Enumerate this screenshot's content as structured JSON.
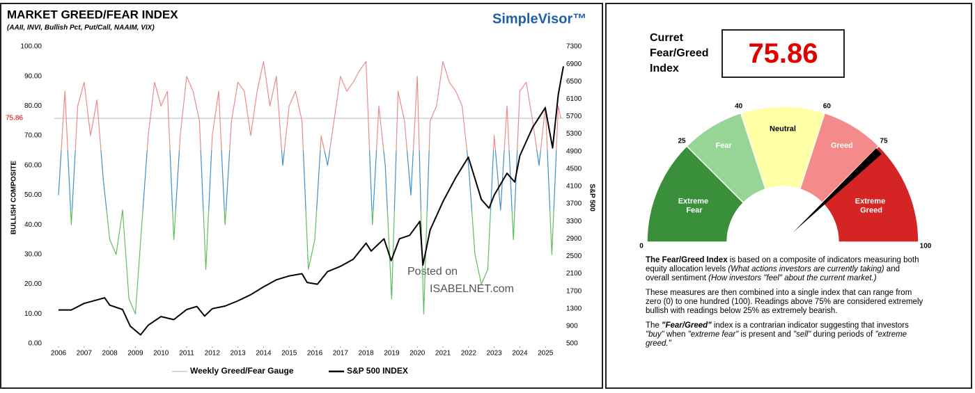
{
  "chart_data": [
    {
      "type": "line",
      "title": "MARKET GREED/FEAR INDEX",
      "subtitle": "(AAII, INVI, Bullish Pct, Put/Call, NAAIM, VIX)",
      "logo": "SimpleVisor™",
      "watermark": [
        "Posted on",
        "ISABELNET.com"
      ],
      "ylabel": "BULLISH COMPOSITE",
      "y2label": "S&P 500",
      "xlim": [
        2006,
        2025.7
      ],
      "xticks": [
        2006,
        2007,
        2008,
        2009,
        2010,
        2011,
        2012,
        2013,
        2014,
        2015,
        2016,
        2017,
        2018,
        2019,
        2020,
        2021,
        2022,
        2023,
        2024,
        2025
      ],
      "ylim": [
        0,
        100
      ],
      "yticks": [
        {
          "value": 0,
          "label": "0.00"
        },
        {
          "value": 10,
          "label": "10.00"
        },
        {
          "value": 20,
          "label": "20.00"
        },
        {
          "value": 30,
          "label": "30.00"
        },
        {
          "value": 40,
          "label": "40.00"
        },
        {
          "value": 50,
          "label": "50.00"
        },
        {
          "value": 60,
          "label": "60.00"
        },
        {
          "value": 70,
          "label": "70.00"
        },
        {
          "value": 80,
          "label": "80.00"
        },
        {
          "value": 90,
          "label": "90.00"
        },
        {
          "value": 100,
          "label": "100.00"
        }
      ],
      "y2lim": [
        500,
        7300
      ],
      "y2ticks": [
        500,
        900,
        1300,
        1700,
        2100,
        2500,
        2900,
        3300,
        3700,
        4100,
        4500,
        4900,
        5300,
        5700,
        6100,
        6500,
        6900,
        7300
      ],
      "reference_line": {
        "value": 75.86,
        "color": "#e00000"
      },
      "legend": "bottom",
      "series": [
        {
          "name": "Weekly Greed/Fear Gauge",
          "color": "#c8c8c8",
          "color_bands": [
            {
              "from": 0,
              "to": 45,
              "color": "#5cbf5c"
            },
            {
              "from": 45,
              "to": 65,
              "color": "#3f8fcc"
            },
            {
              "from": 65,
              "to": 100,
              "color": "#ec8a8a"
            }
          ],
          "x": [
            2006,
            2006.25,
            2006.5,
            2006.75,
            2007,
            2007.25,
            2007.5,
            2007.75,
            2008,
            2008.25,
            2008.5,
            2008.75,
            2009,
            2009.25,
            2009.5,
            2009.75,
            2010,
            2010.25,
            2010.5,
            2010.75,
            2011,
            2011.25,
            2011.5,
            2011.75,
            2012,
            2012.25,
            2012.5,
            2012.75,
            2013,
            2013.25,
            2013.5,
            2013.75,
            2014,
            2014.25,
            2014.5,
            2014.75,
            2015,
            2015.25,
            2015.5,
            2015.75,
            2016,
            2016.25,
            2016.5,
            2016.75,
            2017,
            2017.25,
            2017.5,
            2017.75,
            2018,
            2018.25,
            2018.5,
            2018.75,
            2019,
            2019.25,
            2019.5,
            2019.75,
            2020,
            2020.25,
            2020.5,
            2020.75,
            2021,
            2021.25,
            2021.5,
            2021.75,
            2022,
            2022.25,
            2022.5,
            2022.75,
            2023,
            2023.25,
            2023.5,
            2023.75,
            2024,
            2024.25,
            2024.5,
            2024.75,
            2025,
            2025.25,
            2025.5,
            2025.6
          ],
          "values": [
            50,
            85,
            40,
            80,
            88,
            70,
            82,
            55,
            35,
            30,
            45,
            15,
            10,
            40,
            70,
            88,
            80,
            85,
            35,
            70,
            90,
            85,
            75,
            25,
            70,
            85,
            40,
            75,
            88,
            85,
            70,
            85,
            95,
            80,
            90,
            60,
            80,
            85,
            75,
            25,
            35,
            70,
            60,
            75,
            90,
            85,
            88,
            92,
            95,
            40,
            80,
            60,
            15,
            85,
            75,
            50,
            90,
            10,
            75,
            80,
            95,
            88,
            85,
            80,
            60,
            30,
            20,
            25,
            70,
            45,
            80,
            35,
            85,
            88,
            75,
            60,
            80,
            30,
            80,
            75.86
          ]
        },
        {
          "name": "S&P 500 INDEX",
          "color": "#000000",
          "axis": "y2",
          "x": [
            2006,
            2006.5,
            2007,
            2007.5,
            2007.8,
            2008,
            2008.5,
            2008.8,
            2009.2,
            2009.5,
            2010,
            2010.5,
            2011,
            2011.4,
            2011.7,
            2012,
            2012.5,
            2013,
            2013.5,
            2014,
            2014.5,
            2015,
            2015.5,
            2015.7,
            2016.1,
            2016.5,
            2017,
            2017.5,
            2018,
            2018.2,
            2018.7,
            2018.98,
            2019.3,
            2019.7,
            2020.1,
            2020.22,
            2020.5,
            2021,
            2021.5,
            2021.99,
            2022.5,
            2022.8,
            2023,
            2023.5,
            2023.8,
            2024,
            2024.5,
            2024.99,
            2025.28,
            2025.5,
            2025.7
          ],
          "values": [
            1270,
            1270,
            1420,
            1500,
            1550,
            1380,
            1280,
            900,
            700,
            920,
            1120,
            1050,
            1280,
            1350,
            1130,
            1300,
            1360,
            1480,
            1620,
            1800,
            1960,
            2050,
            2100,
            1900,
            1860,
            2150,
            2270,
            2430,
            2800,
            2620,
            2900,
            2400,
            2900,
            2980,
            3300,
            2300,
            3100,
            3750,
            4300,
            4770,
            3800,
            3600,
            3900,
            4400,
            4200,
            4800,
            5450,
            5900,
            4980,
            6200,
            6850
          ]
        }
      ]
    },
    {
      "type": "gauge",
      "value_label": "Curret Fear/Greed Index",
      "value": 75.86,
      "value_color": "#e00000",
      "needle_color": "#000000",
      "range": [
        0,
        100
      ],
      "ticks": [
        0,
        25,
        40,
        60,
        75,
        100
      ],
      "segments": [
        {
          "name": "Extreme Fear",
          "from": 0,
          "to": 25,
          "color": "#3a8f3a",
          "label_color": "#ffffff"
        },
        {
          "name": "Fear",
          "from": 25,
          "to": 40,
          "color": "#97d597",
          "label_color": "#ffffff"
        },
        {
          "name": "Neutral",
          "from": 40,
          "to": 60,
          "color": "#ffffa6",
          "label_color": "#000000"
        },
        {
          "name": "Greed",
          "from": 60,
          "to": 75,
          "color": "#f48a8a",
          "label_color": "#ffffff"
        },
        {
          "name": "Extreme Greed",
          "from": 75,
          "to": 100,
          "color": "#d42424",
          "label_color": "#ffffff"
        }
      ],
      "description": [
        [
          {
            "text": "The Fear/Greed Index",
            "style": "bold"
          },
          {
            "text": " is based on a composite of indicators measuring both equity allocation levels ",
            "style": "normal"
          },
          {
            "text": "(What actions investors are currently taking)",
            "style": "italic"
          },
          {
            "text": " and overall sentiment ",
            "style": "normal"
          },
          {
            "text": "(How investors \"feel\" about the current market.)",
            "style": "italic"
          }
        ],
        [
          {
            "text": "These measures are then combined into a single index that can range from zero (0) to one hundred (100). Readings above 75% are considered extremely bullish with readings below 25% as extremely bearish.",
            "style": "normal"
          }
        ],
        [
          {
            "text": "The ",
            "style": "normal"
          },
          {
            "text": "\"Fear/Greed\"",
            "style": "bold-italic"
          },
          {
            "text": " index is a contrarian indicator suggesting that investors ",
            "style": "normal"
          },
          {
            "text": "\"buy\"",
            "style": "italic"
          },
          {
            "text": " when ",
            "style": "normal"
          },
          {
            "text": "\"extreme fear\"",
            "style": "italic"
          },
          {
            "text": " is present and ",
            "style": "normal"
          },
          {
            "text": "\"sell\"",
            "style": "italic"
          },
          {
            "text": " during periods of ",
            "style": "normal"
          },
          {
            "text": "\"extreme greed.\"",
            "style": "italic"
          }
        ]
      ]
    }
  ]
}
